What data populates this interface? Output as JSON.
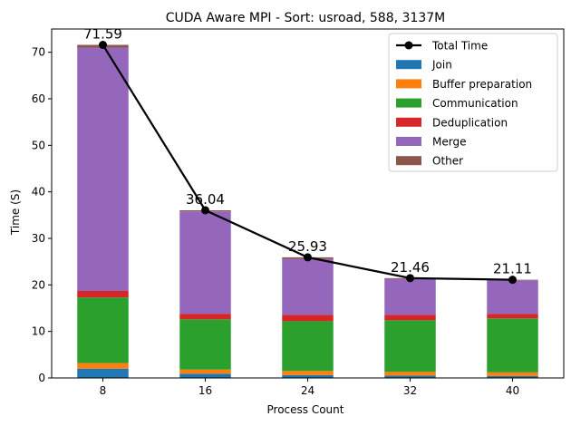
{
  "chart_data": {
    "type": "bar",
    "stacked": true,
    "title": "CUDA Aware MPI - Sort: usroad, 588, 3137M",
    "xlabel": "Process Count",
    "ylabel": "Time (S)",
    "categories": [
      "8",
      "16",
      "24",
      "32",
      "40"
    ],
    "ylim": [
      0,
      75
    ],
    "yticks": [
      0,
      10,
      20,
      30,
      40,
      50,
      60,
      70
    ],
    "grid": false,
    "legend_position": "top-right",
    "series": [
      {
        "name": "Join",
        "color": "#1f77b4",
        "values": [
          2.0,
          0.9,
          0.6,
          0.5,
          0.4
        ]
      },
      {
        "name": "Buffer preparation",
        "color": "#ff7f0e",
        "values": [
          1.2,
          0.9,
          0.9,
          0.8,
          0.8
        ]
      },
      {
        "name": "Communication",
        "color": "#2ca02c",
        "values": [
          14.1,
          10.8,
          10.7,
          11.1,
          11.6
        ]
      },
      {
        "name": "Deduplication",
        "color": "#d62728",
        "values": [
          1.4,
          1.2,
          1.4,
          1.2,
          1.0
        ]
      },
      {
        "name": "Merge",
        "color": "#9467bd",
        "values": [
          52.3,
          22.0,
          12.0,
          7.7,
          7.2
        ]
      },
      {
        "name": "Other",
        "color": "#8c564b",
        "values": [
          0.59,
          0.24,
          0.33,
          0.16,
          0.11
        ]
      }
    ],
    "line": {
      "name": "Total Time",
      "color": "#000000",
      "values": [
        71.59,
        36.04,
        25.93,
        21.46,
        21.11
      ],
      "labels": [
        "71.59",
        "36.04",
        "25.93",
        "21.46",
        "21.11"
      ]
    }
  }
}
